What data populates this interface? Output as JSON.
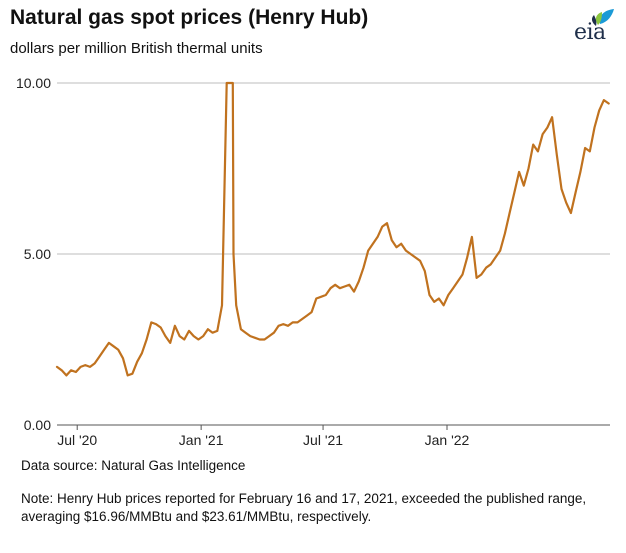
{
  "header": {
    "title": "Natural gas spot prices (Henry Hub)",
    "subtitle": "dollars per million British thermal units",
    "logo_text": "eia",
    "logo_icon": "eia-leaf-logo-icon"
  },
  "footer": {
    "source": "Data source: Natural Gas Intelligence",
    "note": "Note: Henry Hub prices reported for February 16 and 17, 2021, exceeded the published range, averaging $16.96/MMBtu and $23.61/MMBtu, respectively."
  },
  "chart_data": {
    "type": "line",
    "ylim": [
      0,
      10
    ],
    "y_ticks": [
      0,
      5,
      10
    ],
    "y_tick_labels": [
      "0.00",
      "5.00",
      "10.00"
    ],
    "xlim": [
      "2020-06-01",
      "2022-08-31"
    ],
    "x_ticks": [
      "2020-07-01",
      "2021-01-01",
      "2021-07-01",
      "2022-01-01"
    ],
    "x_tick_labels": [
      "Jul '20",
      "Jan '21",
      "Jul '21",
      "Jan '22"
    ],
    "grid": "horizontal",
    "line_color": "#c0721f",
    "series": [
      {
        "x": [
          "2020-06-01",
          "2020-06-08",
          "2020-06-15",
          "2020-06-22",
          "2020-06-29",
          "2020-07-06",
          "2020-07-13",
          "2020-07-20",
          "2020-07-27",
          "2020-08-03",
          "2020-08-10",
          "2020-08-17",
          "2020-08-24",
          "2020-08-31",
          "2020-09-07",
          "2020-09-14",
          "2020-09-21",
          "2020-09-28",
          "2020-10-05",
          "2020-10-12",
          "2020-10-19",
          "2020-10-26",
          "2020-11-02",
          "2020-11-09",
          "2020-11-16",
          "2020-11-23",
          "2020-11-30",
          "2020-12-07",
          "2020-12-14",
          "2020-12-21",
          "2020-12-28",
          "2021-01-04",
          "2021-01-11",
          "2021-01-18",
          "2021-01-25",
          "2021-02-01",
          "2021-02-08",
          "2021-02-11",
          "2021-02-12",
          "2021-02-16",
          "2021-02-17",
          "2021-02-18",
          "2021-02-22",
          "2021-03-01",
          "2021-03-08",
          "2021-03-15",
          "2021-03-22",
          "2021-03-29",
          "2021-04-05",
          "2021-04-12",
          "2021-04-19",
          "2021-04-26",
          "2021-05-03",
          "2021-05-10",
          "2021-05-17",
          "2021-05-24",
          "2021-05-31",
          "2021-06-07",
          "2021-06-14",
          "2021-06-21",
          "2021-06-28",
          "2021-07-05",
          "2021-07-12",
          "2021-07-19",
          "2021-07-26",
          "2021-08-02",
          "2021-08-09",
          "2021-08-16",
          "2021-08-23",
          "2021-08-30",
          "2021-09-06",
          "2021-09-13",
          "2021-09-20",
          "2021-09-27",
          "2021-10-04",
          "2021-10-11",
          "2021-10-18",
          "2021-10-25",
          "2021-11-01",
          "2021-11-08",
          "2021-11-15",
          "2021-11-22",
          "2021-11-29",
          "2021-12-06",
          "2021-12-13",
          "2021-12-20",
          "2021-12-27",
          "2022-01-03",
          "2022-01-10",
          "2022-01-17",
          "2022-01-24",
          "2022-01-31",
          "2022-02-07",
          "2022-02-14",
          "2022-02-21",
          "2022-02-28",
          "2022-03-07",
          "2022-03-14",
          "2022-03-21",
          "2022-03-28",
          "2022-04-04",
          "2022-04-11",
          "2022-04-18",
          "2022-04-25",
          "2022-05-02",
          "2022-05-09",
          "2022-05-16",
          "2022-05-23",
          "2022-05-30",
          "2022-06-06",
          "2022-06-13",
          "2022-06-20",
          "2022-06-27",
          "2022-07-04",
          "2022-07-11",
          "2022-07-18",
          "2022-07-25",
          "2022-08-01",
          "2022-08-08",
          "2022-08-15",
          "2022-08-22",
          "2022-08-29"
        ],
        "y": [
          1.7,
          1.6,
          1.45,
          1.6,
          1.55,
          1.7,
          1.75,
          1.7,
          1.8,
          2.0,
          2.2,
          2.4,
          2.3,
          2.2,
          1.95,
          1.45,
          1.5,
          1.85,
          2.1,
          2.5,
          3.0,
          2.95,
          2.85,
          2.6,
          2.4,
          2.9,
          2.6,
          2.5,
          2.75,
          2.6,
          2.5,
          2.6,
          2.8,
          2.7,
          2.75,
          3.5,
          10.0,
          10.0,
          10.0,
          10.0,
          10.0,
          5.0,
          3.5,
          2.8,
          2.7,
          2.6,
          2.55,
          2.5,
          2.5,
          2.6,
          2.7,
          2.9,
          2.95,
          2.9,
          3.0,
          3.0,
          3.1,
          3.2,
          3.3,
          3.7,
          3.75,
          3.8,
          4.0,
          4.1,
          4.0,
          4.05,
          4.1,
          3.9,
          4.2,
          4.6,
          5.1,
          5.3,
          5.5,
          5.8,
          5.9,
          5.4,
          5.2,
          5.3,
          5.1,
          5.0,
          4.9,
          4.8,
          4.5,
          3.8,
          3.6,
          3.7,
          3.5,
          3.8,
          4.0,
          4.2,
          4.4,
          4.9,
          5.5,
          4.3,
          4.4,
          4.6,
          4.7,
          4.9,
          5.1,
          5.6,
          6.2,
          6.8,
          7.4,
          7.0,
          7.5,
          8.2,
          8.0,
          8.5,
          8.7,
          9.0,
          7.9,
          6.9,
          6.5,
          6.2,
          6.8,
          7.4,
          8.1,
          8.0,
          8.7,
          9.2,
          9.5,
          9.4
        ]
      }
    ]
  }
}
